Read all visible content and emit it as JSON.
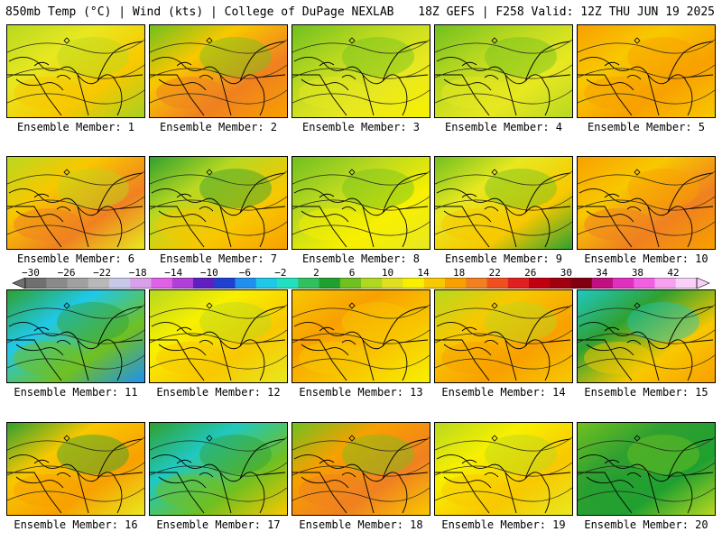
{
  "header": {
    "left_title": "850mb Temp (°C) | Wind (kts) | College of DuPage NEXLAB",
    "right_title": "18Z GEFS | F258 Valid: 12Z THU JUN 19 2025"
  },
  "colorbar": {
    "ticks": [
      "−30",
      "−26",
      "−22",
      "−18",
      "−14",
      "−10",
      "−6",
      "−2",
      "2",
      "6",
      "10",
      "14",
      "18",
      "22",
      "26",
      "30",
      "34",
      "38",
      "42"
    ],
    "colors": [
      "#707070",
      "#8a8a8a",
      "#a0a0a0",
      "#b8b8b8",
      "#c8c8e8",
      "#d8a0e8",
      "#e060e8",
      "#b040d8",
      "#6020c0",
      "#2040d0",
      "#2090f0",
      "#20c8e8",
      "#20e0c0",
      "#30c060",
      "#20a030",
      "#70c020",
      "#b0d820",
      "#e0e020",
      "#f8f000",
      "#f8c800",
      "#f8a000",
      "#f08020",
      "#f05020",
      "#e02020",
      "#c00010",
      "#a00010",
      "#800010",
      "#c01080",
      "#e030c0",
      "#f060e0",
      "#f8a0f0",
      "#f8d0f8"
    ]
  },
  "panels": [
    {
      "label": "Ensemble Member: 1",
      "colors": [
        "#b8d820",
        "#e8e820",
        "#f8c800",
        "#a8d020"
      ]
    },
    {
      "label": "Ensemble Member: 2",
      "colors": [
        "#70c020",
        "#f8c800",
        "#f08020",
        "#f8a000"
      ]
    },
    {
      "label": "Ensemble Member: 3",
      "colors": [
        "#70c020",
        "#b8d820",
        "#e8e820",
        "#f8f000"
      ]
    },
    {
      "label": "Ensemble Member: 4",
      "colors": [
        "#70c020",
        "#b8d820",
        "#e8e820",
        "#b8d820"
      ]
    },
    {
      "label": "Ensemble Member: 5",
      "colors": [
        "#f8a000",
        "#f8c800",
        "#f8a000",
        "#f8c800"
      ]
    },
    {
      "label": "Ensemble Member: 6",
      "colors": [
        "#b8d820",
        "#f8c800",
        "#f08020",
        "#e8e820"
      ]
    },
    {
      "label": "Ensemble Member: 7",
      "colors": [
        "#30a030",
        "#b8d820",
        "#f8c800",
        "#f8a000"
      ]
    },
    {
      "label": "Ensemble Member: 8",
      "colors": [
        "#70c020",
        "#b8d820",
        "#f8f000",
        "#e8e820"
      ]
    },
    {
      "label": "Ensemble Member: 9",
      "colors": [
        "#70c020",
        "#e8e820",
        "#f8c800",
        "#30a030"
      ]
    },
    {
      "label": "Ensemble Member: 10",
      "colors": [
        "#f8a000",
        "#f8c800",
        "#f08020",
        "#f8a000"
      ]
    },
    {
      "label": "Ensemble Member: 11",
      "colors": [
        "#30a030",
        "#20c8e8",
        "#70c020",
        "#2090f0"
      ]
    },
    {
      "label": "Ensemble Member: 12",
      "colors": [
        "#b8d820",
        "#f8f000",
        "#f8c800",
        "#e8e820"
      ]
    },
    {
      "label": "Ensemble Member: 13",
      "colors": [
        "#f8c800",
        "#f8a000",
        "#f8c800",
        "#f8f000"
      ]
    },
    {
      "label": "Ensemble Member: 14",
      "colors": [
        "#b8d820",
        "#f8c800",
        "#f8a000",
        "#f8c800"
      ]
    },
    {
      "label": "Ensemble Member: 15",
      "colors": [
        "#20c8c0",
        "#30a030",
        "#f8c800",
        "#f8a000"
      ]
    },
    {
      "label": "Ensemble Member: 16",
      "colors": [
        "#30a030",
        "#f8c800",
        "#f8a000",
        "#e8e820"
      ]
    },
    {
      "label": "Ensemble Member: 17",
      "colors": [
        "#30a030",
        "#20c8c0",
        "#70c020",
        "#f8c800"
      ]
    },
    {
      "label": "Ensemble Member: 18",
      "colors": [
        "#70c020",
        "#f8a000",
        "#f08020",
        "#f8c800"
      ]
    },
    {
      "label": "Ensemble Member: 19",
      "colors": [
        "#b8d820",
        "#f8f000",
        "#f8c800",
        "#e8e820"
      ]
    },
    {
      "label": "Ensemble Member: 20",
      "colors": [
        "#70c020",
        "#30a030",
        "#20a030",
        "#b8d820"
      ]
    }
  ]
}
